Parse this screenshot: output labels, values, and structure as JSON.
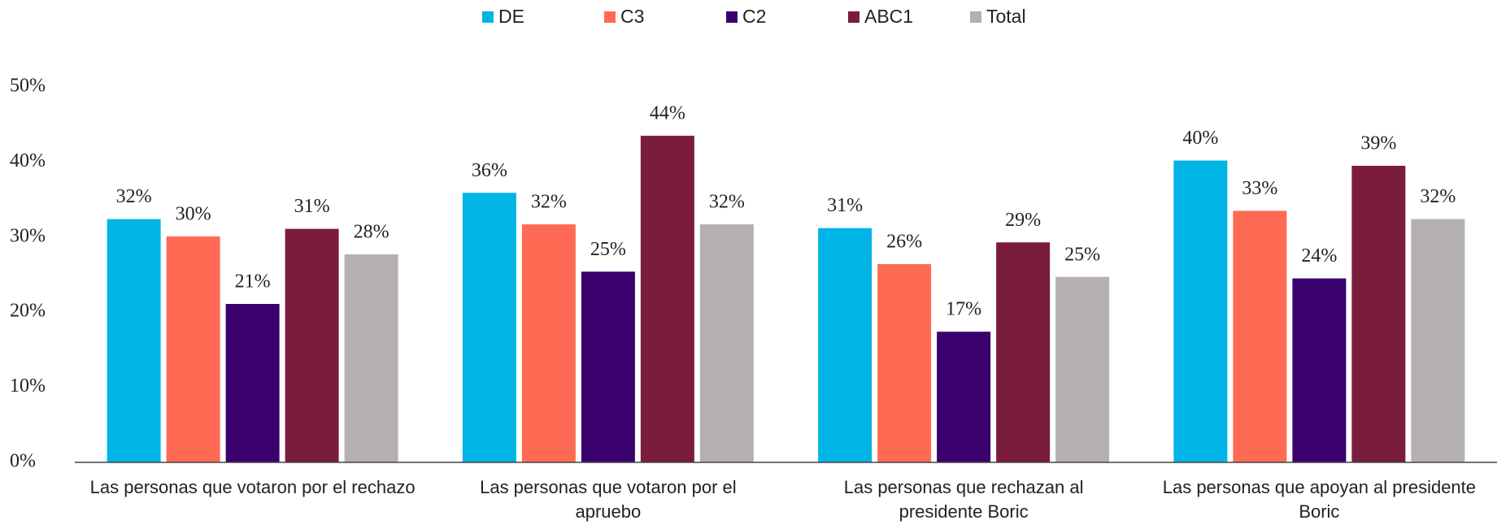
{
  "chart_data": {
    "type": "bar",
    "categories": [
      "Las personas que votaron por el rechazo",
      "Las personas que votaron por el apruebo",
      "Las personas que rechazan al presidente Boric",
      "Las personas que apoyan al presidente Boric"
    ],
    "series": [
      {
        "name": "DE",
        "color": "#00b4e6",
        "values": [
          32.4,
          35.9,
          31.2,
          40.2
        ],
        "value_labels": [
          "32%",
          "36%",
          "31%",
          "40%"
        ]
      },
      {
        "name": "C3",
        "color": "#ff6a55",
        "values": [
          30.1,
          31.7,
          26.4,
          33.5
        ],
        "value_labels": [
          "30%",
          "32%",
          "26%",
          "33%"
        ]
      },
      {
        "name": "C2",
        "color": "#3a006e",
        "values": [
          21.1,
          25.4,
          17.4,
          24.5
        ],
        "value_labels": [
          "21%",
          "25%",
          "17%",
          "24%"
        ]
      },
      {
        "name": "ABC1",
        "color": "#7a1c3c",
        "values": [
          31.1,
          43.5,
          29.3,
          39.5
        ],
        "value_labels": [
          "31%",
          "44%",
          "29%",
          "39%"
        ]
      },
      {
        "name": "Total",
        "color": "#b4b0b0",
        "values": [
          27.7,
          31.7,
          24.7,
          32.4
        ],
        "value_labels": [
          "28%",
          "32%",
          "25%",
          "32%"
        ]
      }
    ],
    "ylim": [
      0,
      50
    ],
    "yticks": [
      {
        "value": 0,
        "label": "0%"
      },
      {
        "value": 10,
        "label": "10%"
      },
      {
        "value": 20,
        "label": "20%"
      },
      {
        "value": 30,
        "label": "30%"
      },
      {
        "value": 40,
        "label": "40%"
      },
      {
        "value": 50,
        "label": "50%"
      }
    ],
    "legend": "top",
    "grid": false
  }
}
